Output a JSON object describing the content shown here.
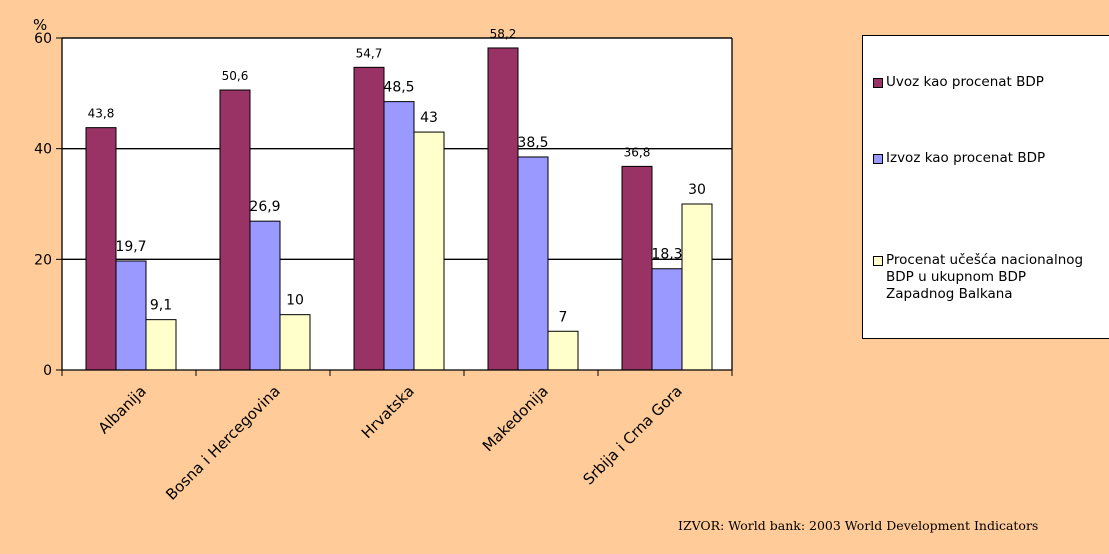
{
  "chart_data": {
    "type": "bar",
    "categories": [
      "Albanija",
      "Bosna i Hercegovina",
      "Hrvatska",
      "Makedonija",
      "Srbija i Crna Gora"
    ],
    "series": [
      {
        "name": "Uvoz kao procenat BDP",
        "values": [
          43.8,
          50.6,
          54.7,
          58.2,
          36.8
        ],
        "labels": [
          "43,8",
          "50,6",
          "54,7",
          "58,2",
          "36,8"
        ],
        "color": "#993366"
      },
      {
        "name": "Izvoz kao procenat BDP",
        "values": [
          19.7,
          26.9,
          48.5,
          38.5,
          18.3
        ],
        "labels": [
          "19,7",
          "26,9",
          "48,5",
          "38,5",
          "18,3"
        ],
        "color": "#9999FF"
      },
      {
        "name": "Procenat učešća nacionalnog BDP u ukupnom BDP Zapadnog Balkana",
        "values": [
          9.1,
          10,
          43,
          7,
          30
        ],
        "labels": [
          "9,1",
          "10",
          "43",
          "7",
          "30"
        ],
        "color": "#FFFFCC"
      }
    ],
    "ylabel": "%",
    "ylim": [
      0,
      60
    ],
    "yticks": [
      0,
      20,
      40,
      60
    ],
    "grid": true,
    "legend": "right",
    "plot_background": "#ffffff"
  },
  "source": "IZVOR: World bank: 2003 World Development Indicators"
}
